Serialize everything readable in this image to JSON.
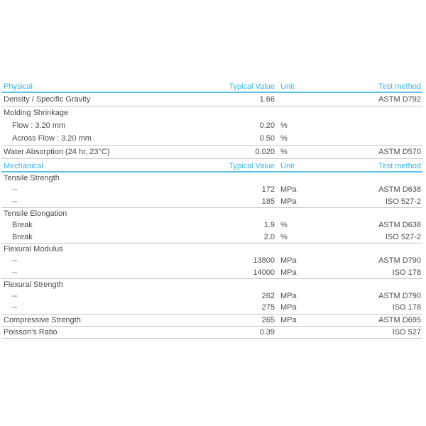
{
  "page": {
    "background": "#ffffff"
  },
  "colors": {
    "accent_cyan": "#3ab3e5",
    "header_rule_cyan": "#5fc0e9",
    "row_rule_gray": "#c6c6c6",
    "body_text_gray": "#4b4b4b"
  },
  "table": {
    "column_headers": {
      "value": "Typical Value",
      "unit": "Unit",
      "method": "Test method"
    },
    "sections": [
      {
        "title": "Physical",
        "groups": [
          {
            "rows": [
              {
                "prop": "Density / Specific Gravity",
                "value": "1.66",
                "method": "ASTM D792"
              }
            ]
          },
          {
            "rows": [
              {
                "prop": "Molding Shrinkage"
              },
              {
                "prop": "Flow : 3.20 mm",
                "value": "0.20",
                "unit": "%",
                "indent": true
              },
              {
                "prop": "Across Flow : 3.20 mm",
                "value": "0.50",
                "unit": "%",
                "indent": true
              }
            ]
          },
          {
            "rows": [
              {
                "prop": "Water Absorption (24 hr, 23°C)",
                "value": "0.020",
                "unit": "%",
                "method": "ASTM D570"
              }
            ]
          }
        ]
      },
      {
        "title": "Mechanical",
        "groups": [
          {
            "rows": [
              {
                "prop": "Tensile Strength"
              },
              {
                "prop": "--",
                "value": "172",
                "unit": "MPa",
                "method": "ASTM D638",
                "indent": true
              },
              {
                "prop": "--",
                "value": "185",
                "unit": "MPa",
                "method": "ISO 527-2",
                "indent": true
              }
            ]
          },
          {
            "rows": [
              {
                "prop": "Tensile Elongation"
              },
              {
                "prop": "Break",
                "value": "1.9",
                "unit": "%",
                "method": "ASTM D638",
                "indent": true
              },
              {
                "prop": "Break",
                "value": "2.0",
                "unit": "%",
                "method": "ISO 527-2",
                "indent": true
              }
            ]
          },
          {
            "rows": [
              {
                "prop": "Flexural Modulus"
              },
              {
                "prop": "--",
                "value": "13800",
                "unit": "MPa",
                "method": "ASTM D790",
                "indent": true
              },
              {
                "prop": "--",
                "value": "14000",
                "unit": "MPa",
                "method": "ISO 178",
                "indent": true
              }
            ]
          },
          {
            "rows": [
              {
                "prop": "Flexural Strength"
              },
              {
                "prop": "--",
                "value": "262",
                "unit": "MPa",
                "method": "ASTM D790",
                "indent": true
              },
              {
                "prop": "--",
                "value": "275",
                "unit": "MPa",
                "method": "ISO 178",
                "indent": true
              }
            ]
          },
          {
            "rows": [
              {
                "prop": "Compressive Strength",
                "value": "265",
                "unit": "MPa",
                "method": "ASTM D695"
              }
            ]
          },
          {
            "rows": [
              {
                "prop": "Poisson's Ratio",
                "value": "0.39",
                "method": "ISO 527"
              }
            ]
          }
        ]
      }
    ]
  }
}
